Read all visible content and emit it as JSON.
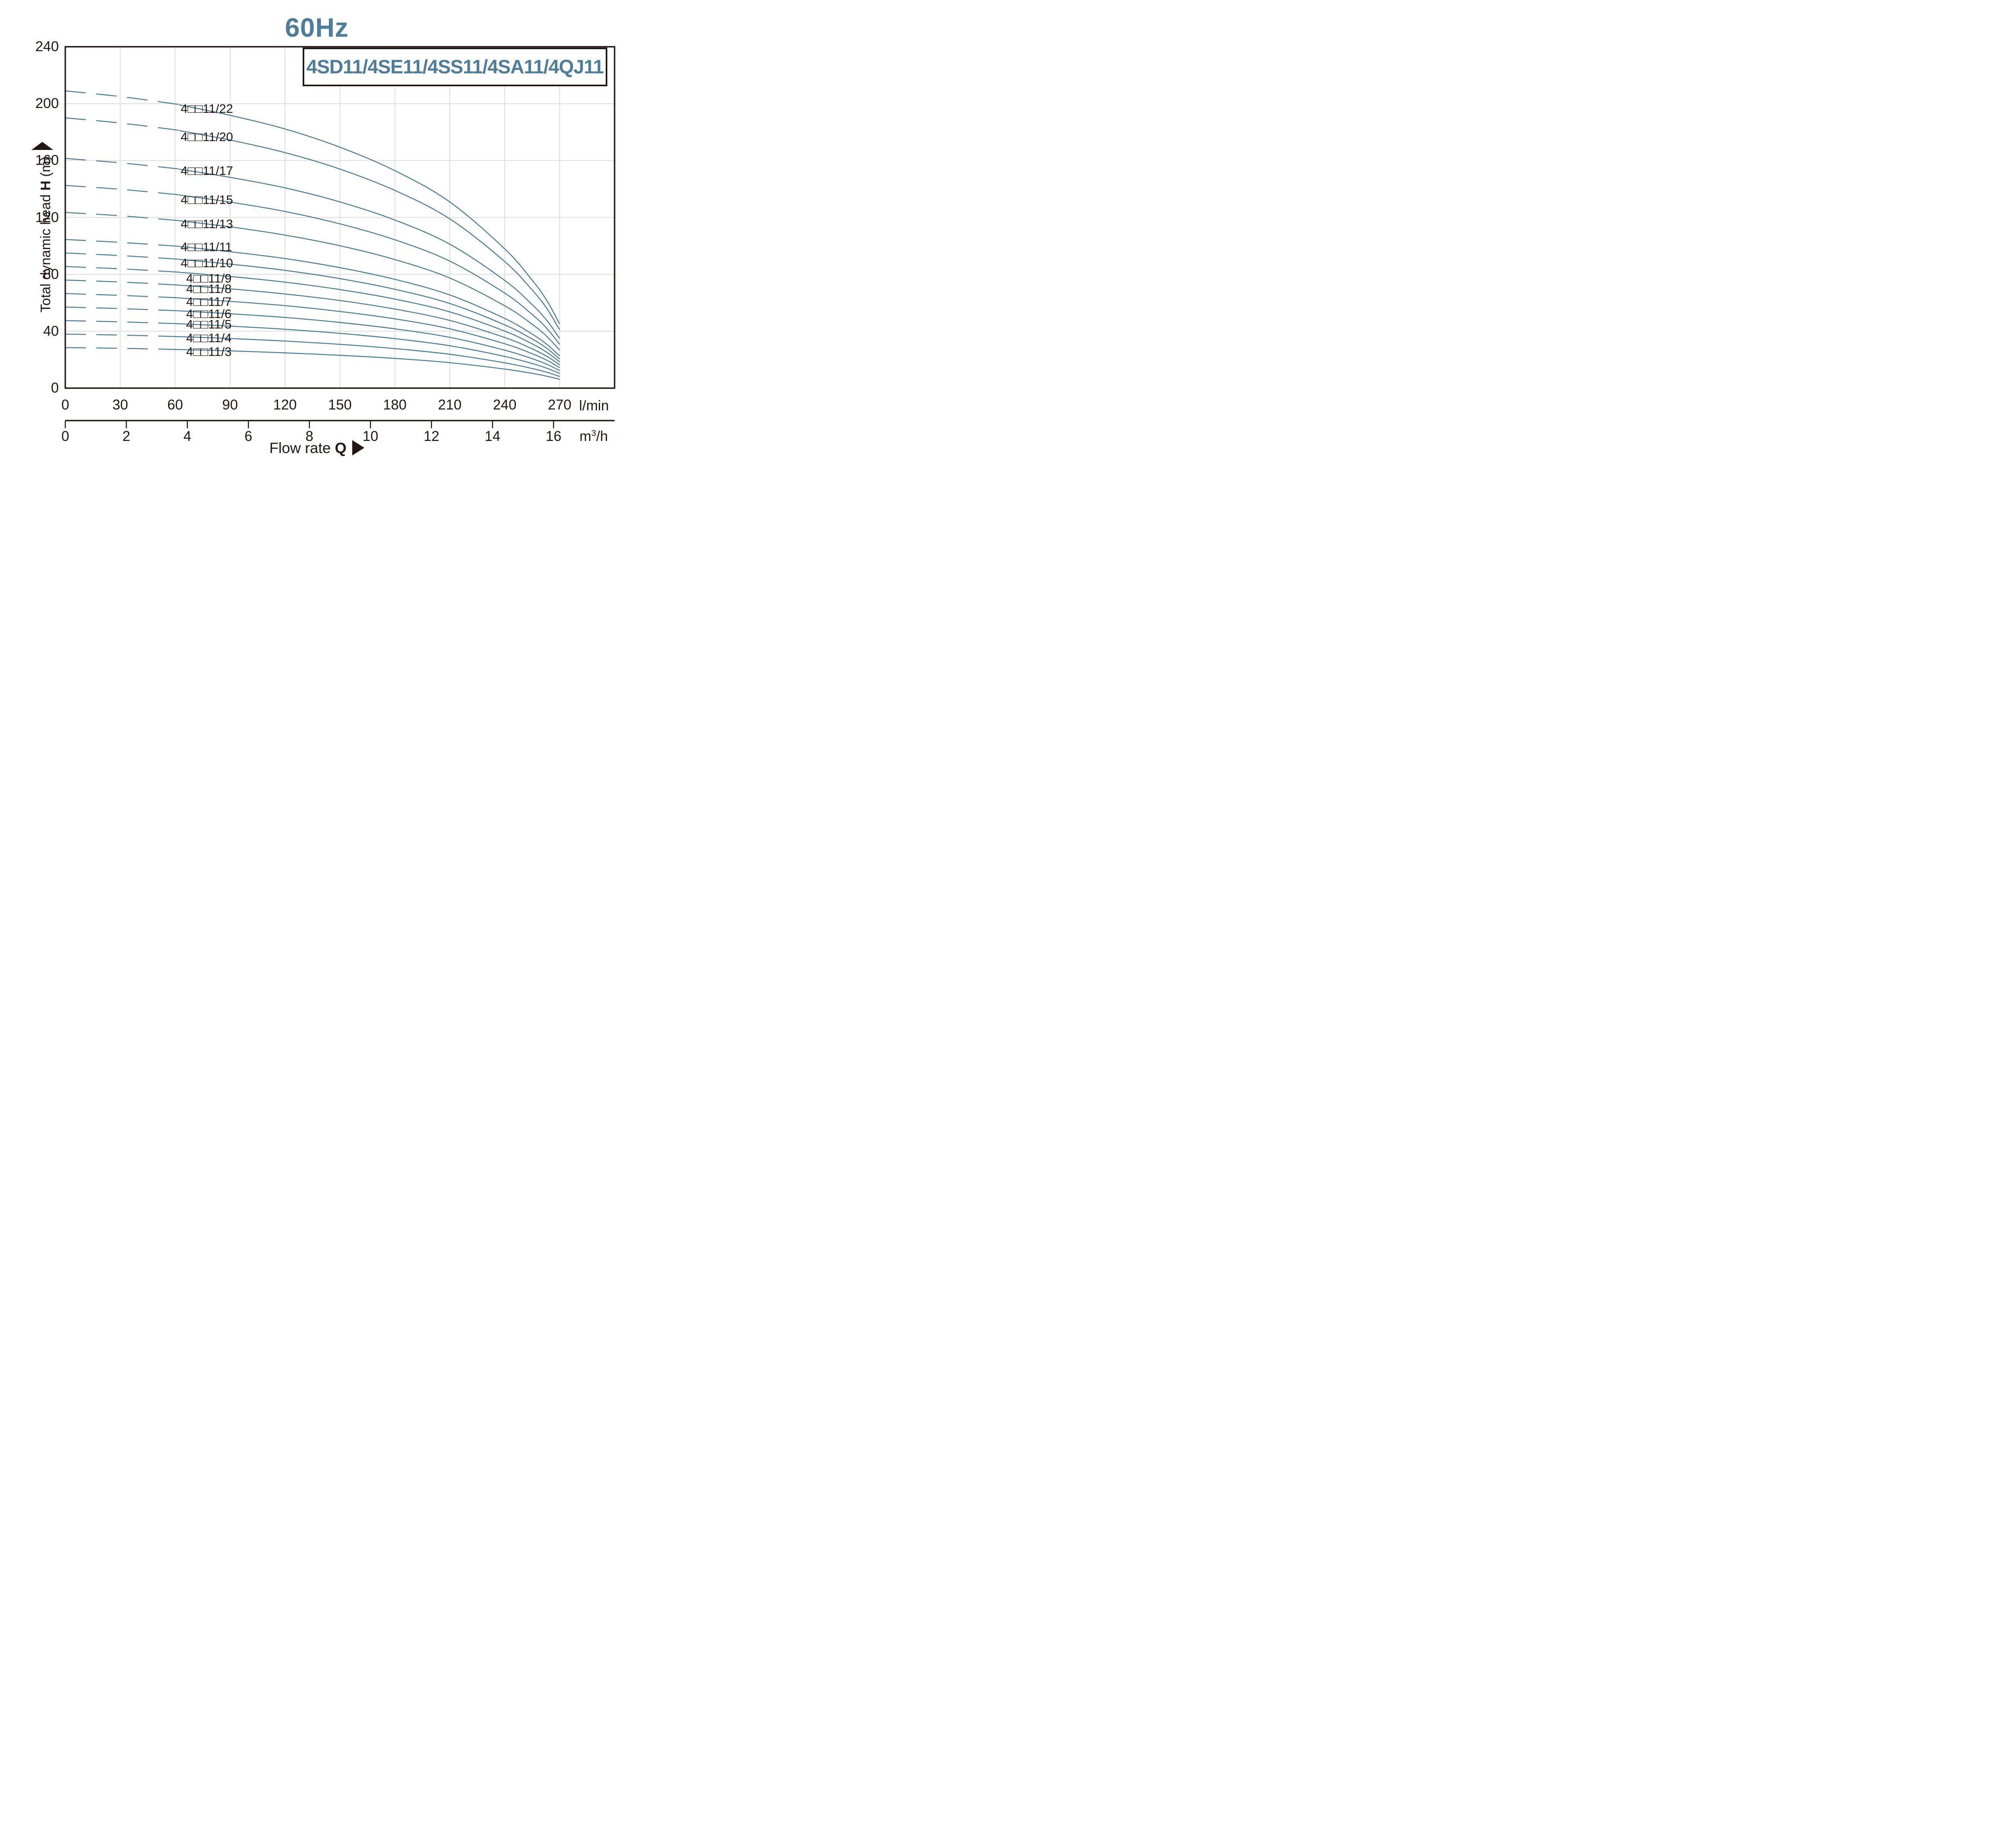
{
  "title": {
    "text": "60Hz"
  },
  "legend": {
    "text": "4SD11/4SE11/4SS11/4SA11/4QJ11"
  },
  "y_axis_title": {
    "regular": "Total dynamic head ",
    "bold": "H",
    "unit": " (m)",
    "arrow": "up-triangle"
  },
  "x_label": {
    "regular": "Flow rate ",
    "bold": "Q",
    "arrow": "right-triangle"
  },
  "units": {
    "lmin": "l/min",
    "m3h_base": "m",
    "m3h_sup": "3",
    "m3h_rest": "/h"
  },
  "colors": {
    "accent_blue": "#4d7d98",
    "curve_blue": "#487b95",
    "grid_gray": "#dfdfdf",
    "ink": "#221713",
    "background": "#ffffff"
  },
  "chart_data": {
    "type": "line",
    "title": "60Hz",
    "subtitle": "4SD11/4SE11/4SS11/4SA11/4QJ11",
    "xlabel": "Flow rate Q",
    "ylabel": "Total dynamic head H (m)",
    "x_axis_lmin": {
      "min": 0,
      "max": 300,
      "grid_step": 30,
      "tick_values": [
        0,
        30,
        60,
        90,
        120,
        150,
        180,
        210,
        240,
        270
      ],
      "unit": "l/min"
    },
    "x_axis_m3h": {
      "tick_values": [
        0,
        2,
        4,
        6,
        8,
        10,
        12,
        14,
        16
      ],
      "unit": "m3/h",
      "lmin_per_m3h": 16.667
    },
    "y_axis": {
      "min": 0,
      "max": 240,
      "grid_step": 40,
      "tick_values": [
        0,
        40,
        80,
        120,
        160,
        200,
        240
      ]
    },
    "grid": "on",
    "dashed_below_q_lmin": 62,
    "x_lmin": [
      0,
      30,
      60,
      90,
      120,
      150,
      180,
      210,
      240,
      255,
      263,
      270
    ],
    "per_stage_head_m": [
      9.5,
      9.32,
      9.08,
      8.72,
      8.28,
      7.7,
      6.95,
      5.95,
      4.45,
      3.45,
      2.8,
      2.05
    ],
    "series": [
      {
        "name": "4□□11/22",
        "stages": 22,
        "label_q": 63,
        "label_h": 196.5,
        "values": [
          209.0,
          205.0,
          199.8,
          191.8,
          182.2,
          169.4,
          152.9,
          130.9,
          97.9,
          75.9,
          61.6,
          45.1
        ]
      },
      {
        "name": "4□□11/20",
        "stages": 20,
        "label_q": 63,
        "label_h": 176.5,
        "values": [
          190.0,
          186.4,
          181.6,
          174.4,
          165.6,
          154.0,
          139.0,
          119.0,
          89.0,
          69.0,
          56.0,
          41.0
        ]
      },
      {
        "name": "4□□11/17",
        "stages": 17,
        "label_q": 63,
        "label_h": 152.8,
        "values": [
          161.5,
          158.4,
          154.4,
          148.2,
          140.8,
          130.9,
          118.2,
          101.2,
          75.7,
          58.7,
          47.6,
          34.9
        ]
      },
      {
        "name": "4□□11/15",
        "stages": 15,
        "label_q": 63,
        "label_h": 132.3,
        "values": [
          142.5,
          139.8,
          136.2,
          130.8,
          124.2,
          115.5,
          104.3,
          89.3,
          66.8,
          51.8,
          42.0,
          30.8
        ]
      },
      {
        "name": "4□□11/13",
        "stages": 13,
        "label_q": 63,
        "label_h": 115.2,
        "values": [
          123.5,
          121.2,
          118.0,
          113.4,
          107.6,
          100.1,
          90.4,
          77.4,
          57.9,
          44.9,
          36.4,
          26.7
        ]
      },
      {
        "name": "4□□11/11",
        "stages": 11,
        "label_q": 63,
        "label_h": 99.1,
        "values": [
          104.5,
          102.5,
          99.9,
          95.9,
          91.1,
          84.7,
          76.5,
          65.5,
          49.0,
          38.0,
          30.8,
          22.6
        ]
      },
      {
        "name": "4□□11/10",
        "stages": 10,
        "label_q": 63,
        "label_h": 87.8,
        "values": [
          95.0,
          93.2,
          90.8,
          87.2,
          82.8,
          77.0,
          69.5,
          59.5,
          44.5,
          34.5,
          28.0,
          20.5
        ]
      },
      {
        "name": "4□□11/9",
        "stages": 9,
        "label_q": 66,
        "label_h": 77.2,
        "values": [
          85.5,
          83.9,
          81.7,
          78.5,
          74.5,
          69.3,
          62.6,
          53.6,
          40.1,
          31.1,
          25.2,
          18.5
        ]
      },
      {
        "name": "4□□11/8",
        "stages": 8,
        "label_q": 66,
        "label_h": 69.8,
        "values": [
          76.0,
          74.6,
          72.6,
          69.8,
          66.2,
          61.6,
          55.6,
          47.6,
          35.6,
          27.6,
          22.4,
          16.4
        ]
      },
      {
        "name": "4□□11/7",
        "stages": 7,
        "label_q": 66,
        "label_h": 60.6,
        "values": [
          66.5,
          65.2,
          63.6,
          61.0,
          58.0,
          53.9,
          48.7,
          41.7,
          31.2,
          24.2,
          19.6,
          14.4
        ]
      },
      {
        "name": "4□□11/6",
        "stages": 6,
        "label_q": 66,
        "label_h": 52.2,
        "values": [
          57.0,
          55.9,
          54.5,
          52.3,
          49.7,
          46.2,
          41.7,
          35.7,
          26.7,
          20.7,
          16.8,
          12.3
        ]
      },
      {
        "name": "4□□11/5",
        "stages": 5,
        "label_q": 66,
        "label_h": 44.8,
        "values": [
          47.5,
          46.6,
          45.4,
          43.6,
          41.4,
          38.5,
          34.8,
          29.8,
          22.3,
          17.3,
          14.0,
          10.3
        ]
      },
      {
        "name": "4□□11/4",
        "stages": 4,
        "label_q": 66,
        "label_h": 35.2,
        "values": [
          38.0,
          37.3,
          36.3,
          34.9,
          33.1,
          30.8,
          27.8,
          23.8,
          17.8,
          13.8,
          11.2,
          8.2
        ]
      },
      {
        "name": "4□□11/3",
        "stages": 3,
        "label_q": 66,
        "label_h": 25.6,
        "values": [
          28.5,
          28.0,
          27.2,
          26.2,
          24.8,
          23.1,
          20.9,
          17.9,
          13.4,
          10.4,
          8.4,
          6.2
        ]
      }
    ]
  }
}
